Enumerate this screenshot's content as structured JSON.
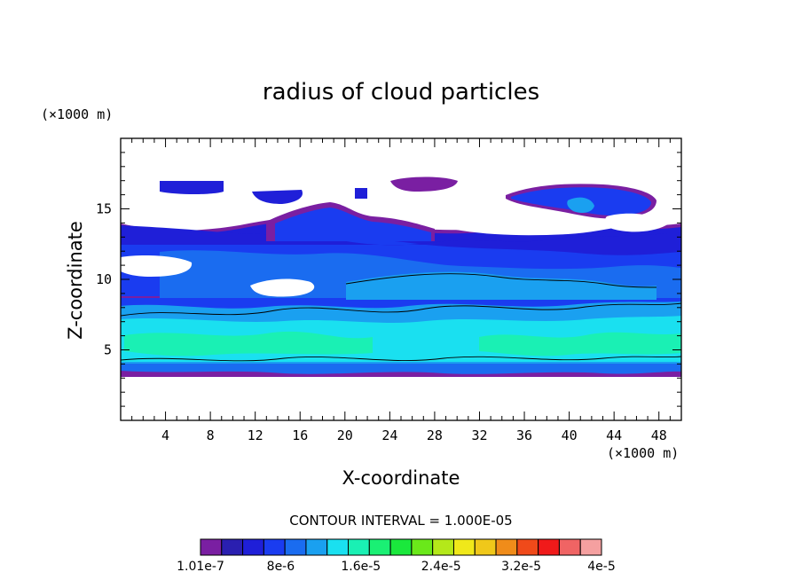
{
  "chart_data": {
    "type": "heatmap",
    "title": "radius of cloud particles",
    "xlabel": "X-coordinate",
    "ylabel": "Z-coordinate",
    "x_unit_note": "(×1000 m)",
    "y_unit_note": "(×1000 m)",
    "xlim": [
      0,
      50
    ],
    "ylim": [
      0,
      20
    ],
    "x_ticks": [
      4,
      8,
      12,
      16,
      20,
      24,
      28,
      32,
      36,
      40,
      44,
      48
    ],
    "y_ticks": [
      5,
      10,
      15
    ],
    "contour_interval_text": "CONTOUR INTERVAL = 1.000E-05",
    "colorbar": {
      "colors": [
        "#7a1fa2",
        "#2a1fb0",
        "#1f1fd8",
        "#1a3cf0",
        "#1a6cf0",
        "#1aa0f0",
        "#1ae0f0",
        "#1af0b4",
        "#1af074",
        "#1ae83c",
        "#6ae81a",
        "#b4e81a",
        "#f0e81a",
        "#f0c81a",
        "#f08c1a",
        "#f04a1a",
        "#f01a1a",
        "#f06464",
        "#f5a0a0"
      ],
      "labels": [
        "1.01e-7",
        "8e-6",
        "1.6e-5",
        "2.4e-5",
        "3.2e-5",
        "4e-5"
      ]
    },
    "field_regions": [
      {
        "level": "1.01e-7 – 2e-6",
        "color": "#7a1fa2",
        "note": "thin outline of cloud"
      },
      {
        "level": "2e-6 – 6e-6",
        "color": "#1f1fd8",
        "note": "upper anvil 11–17 km"
      },
      {
        "level": "6e-6 – 1e-5",
        "color": "#1a6cf0",
        "note": "main layer 7–14 km"
      },
      {
        "level": "1e-5 – 1.4e-5",
        "color": "#1aa0f0",
        "note": "9–11 km streak"
      },
      {
        "level": "1.4e-5 – 1.8e-5",
        "color": "#1ae0f0",
        "note": "lower cloud 4–7 km"
      },
      {
        "level": "1.8e-5 – 2.2e-5",
        "color": "#1af0b4",
        "note": "core near 5–6 km"
      }
    ]
  }
}
